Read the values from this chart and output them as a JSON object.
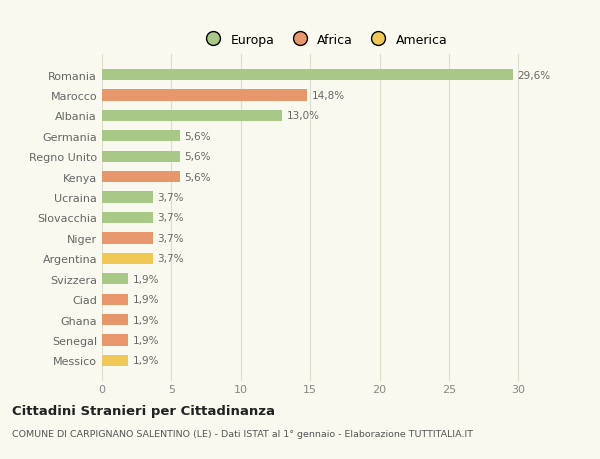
{
  "categories": [
    "Messico",
    "Senegal",
    "Ghana",
    "Ciad",
    "Svizzera",
    "Argentina",
    "Niger",
    "Slovacchia",
    "Ucraina",
    "Kenya",
    "Regno Unito",
    "Germania",
    "Albania",
    "Marocco",
    "Romania"
  ],
  "values": [
    1.9,
    1.9,
    1.9,
    1.9,
    1.9,
    3.7,
    3.7,
    3.7,
    3.7,
    5.6,
    5.6,
    5.6,
    13.0,
    14.8,
    29.6
  ],
  "colors": [
    "#f0c855",
    "#e8976d",
    "#e8976d",
    "#e8976d",
    "#a8c888",
    "#f0c855",
    "#e8976d",
    "#a8c888",
    "#a8c888",
    "#e8976d",
    "#a8c888",
    "#a8c888",
    "#a8c888",
    "#e8976d",
    "#a8c888"
  ],
  "labels": [
    "1,9%",
    "1,9%",
    "1,9%",
    "1,9%",
    "1,9%",
    "3,7%",
    "3,7%",
    "3,7%",
    "3,7%",
    "5,6%",
    "5,6%",
    "5,6%",
    "13,0%",
    "14,8%",
    "29,6%"
  ],
  "xlim": [
    0,
    32
  ],
  "xticks": [
    0,
    5,
    10,
    15,
    20,
    25,
    30
  ],
  "legend_labels": [
    "Europa",
    "Africa",
    "America"
  ],
  "legend_colors": [
    "#a8c888",
    "#e8976d",
    "#f0c855"
  ],
  "title": "Cittadini Stranieri per Cittadinanza",
  "subtitle": "COMUNE DI CARPIGNANO SALENTINO (LE) - Dati ISTAT al 1° gennaio - Elaborazione TUTTITALIA.IT",
  "bg_color": "#f9f9f0",
  "bar_height": 0.55
}
